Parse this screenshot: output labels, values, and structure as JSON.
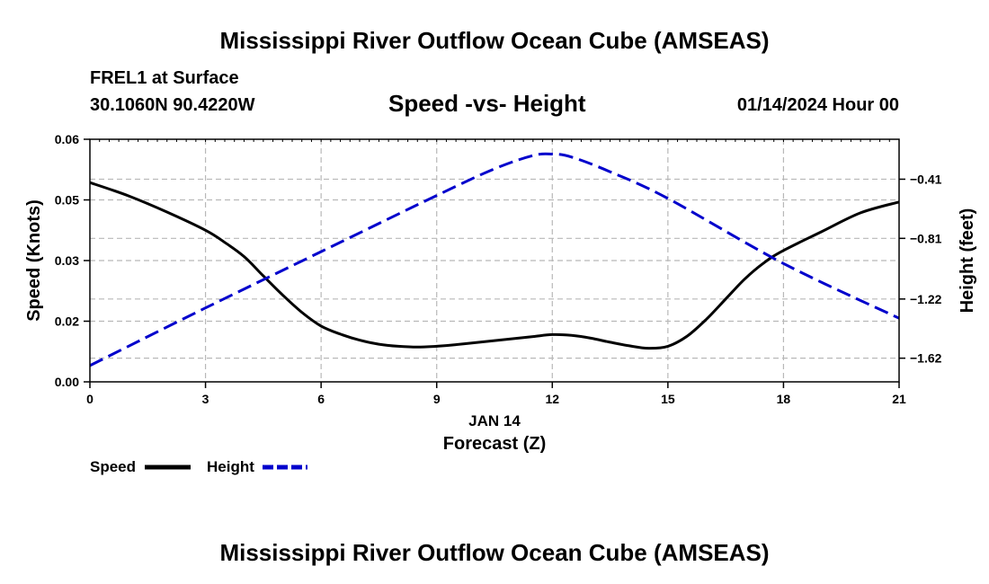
{
  "header": {
    "title": "Mississippi River Outflow Ocean Cube (AMSEAS)",
    "station": "FREL1 at Surface",
    "coords": "30.1060N  90.4220W",
    "subtitle": "Speed -vs- Height",
    "datetime": "01/14/2024 Hour 00"
  },
  "footer": {
    "title": "Mississippi River Outflow Ocean Cube (AMSEAS)"
  },
  "chart_data": {
    "type": "line",
    "title": "Speed -vs- Height",
    "xlabel": "Forecast (Z)",
    "xsublabel": "JAN 14",
    "ylabel": "Speed (Knots)",
    "y2label": "Height (feet)",
    "xlim": [
      0,
      21
    ],
    "xticks": [
      0,
      3,
      6,
      9,
      12,
      15,
      18,
      21
    ],
    "xtick_labels": [
      "0",
      "3",
      "6",
      "9",
      "12",
      "15",
      "18",
      "21"
    ],
    "ylim": [
      0,
      0.06
    ],
    "yticks": [
      0,
      0.015,
      0.03,
      0.045,
      0.06
    ],
    "ytick_labels": [
      "0.00",
      "0.02",
      "0.03",
      "0.05",
      "0.06"
    ],
    "y2lim": [
      -1.78,
      -0.14
    ],
    "y2ticks": [
      -1.62,
      -1.22,
      -0.81,
      -0.41
    ],
    "y2tick_labels": [
      "−1.62",
      "−1.22",
      "−0.81",
      "−0.41"
    ],
    "grid": true,
    "series": [
      {
        "name": "Speed",
        "axis": "left",
        "color": "#000000",
        "dash": "solid",
        "x": [
          0,
          1,
          2,
          3,
          3.5,
          4,
          4.5,
          5,
          5.5,
          6,
          6.5,
          7,
          7.5,
          8,
          8.5,
          9,
          9.5,
          10,
          10.5,
          11,
          11.5,
          12,
          12.5,
          13,
          13.5,
          14,
          14.5,
          15,
          15.5,
          16,
          16.5,
          17,
          17.5,
          18,
          19,
          20,
          21
        ],
        "values": [
          0.0493,
          0.046,
          0.042,
          0.0375,
          0.0345,
          0.031,
          0.0262,
          0.0215,
          0.0172,
          0.0138,
          0.0118,
          0.0103,
          0.0093,
          0.0088,
          0.0086,
          0.0088,
          0.0092,
          0.0097,
          0.0102,
          0.0107,
          0.0112,
          0.0117,
          0.0115,
          0.0108,
          0.0098,
          0.0089,
          0.0083,
          0.0088,
          0.0113,
          0.0155,
          0.0205,
          0.0255,
          0.0295,
          0.0325,
          0.0372,
          0.0418,
          0.0445
        ]
      },
      {
        "name": "Height",
        "axis": "right",
        "color": "#0000cc",
        "dash": "dashed",
        "x": [
          0,
          3,
          6,
          9,
          10.5,
          11.5,
          12,
          12.5,
          13.5,
          15,
          18,
          21
        ],
        "values": [
          -1.67,
          -1.28,
          -0.9,
          -0.52,
          -0.34,
          -0.25,
          -0.24,
          -0.26,
          -0.36,
          -0.54,
          -0.98,
          -1.35
        ]
      }
    ],
    "legend": [
      "Speed",
      "Height"
    ]
  }
}
